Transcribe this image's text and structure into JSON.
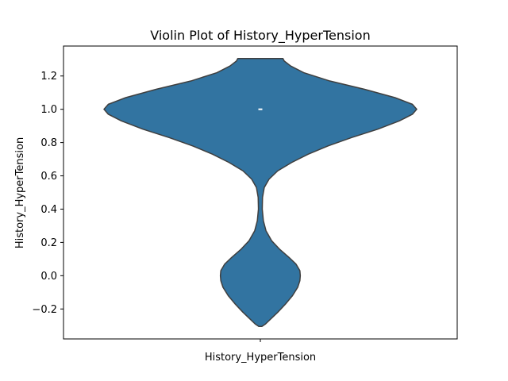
{
  "chart_data": {
    "type": "violin",
    "title": "Violin Plot of History_HyperTension",
    "xlabel": "History_HyperTension",
    "ylabel": "History_HyperTension",
    "categories": [
      "History_HyperTension"
    ],
    "ylim": [
      -0.38,
      1.38
    ],
    "yticks": [
      -0.2,
      0.0,
      0.2,
      0.4,
      0.6,
      0.8,
      1.0,
      1.2
    ],
    "yticklabels": [
      "−0.2",
      "0.0",
      "0.2",
      "0.4",
      "0.6",
      "0.8",
      "1.0",
      "1.2"
    ],
    "grid": false,
    "violin_extent": [
      -0.305,
      1.305
    ],
    "median": 1.0,
    "density_profile": [
      {
        "y": -0.305,
        "w": 0.018
      },
      {
        "y": -0.29,
        "w": 0.06
      },
      {
        "y": -0.26,
        "w": 0.12
      },
      {
        "y": -0.22,
        "w": 0.2
      },
      {
        "y": -0.17,
        "w": 0.29
      },
      {
        "y": -0.12,
        "w": 0.37
      },
      {
        "y": -0.07,
        "w": 0.43
      },
      {
        "y": -0.03,
        "w": 0.455
      },
      {
        "y": 0.0,
        "w": 0.46
      },
      {
        "y": 0.03,
        "w": 0.455
      },
      {
        "y": 0.07,
        "w": 0.41
      },
      {
        "y": 0.11,
        "w": 0.33
      },
      {
        "y": 0.16,
        "w": 0.22
      },
      {
        "y": 0.21,
        "w": 0.13
      },
      {
        "y": 0.27,
        "w": 0.065
      },
      {
        "y": 0.33,
        "w": 0.035
      },
      {
        "y": 0.4,
        "w": 0.022
      },
      {
        "y": 0.47,
        "w": 0.025
      },
      {
        "y": 0.53,
        "w": 0.045
      },
      {
        "y": 0.58,
        "w": 0.1
      },
      {
        "y": 0.63,
        "w": 0.2
      },
      {
        "y": 0.68,
        "w": 0.36
      },
      {
        "y": 0.73,
        "w": 0.55
      },
      {
        "y": 0.78,
        "w": 0.78
      },
      {
        "y": 0.83,
        "w": 1.05
      },
      {
        "y": 0.88,
        "w": 1.35
      },
      {
        "y": 0.93,
        "w": 1.6
      },
      {
        "y": 0.97,
        "w": 1.75
      },
      {
        "y": 1.0,
        "w": 1.8
      },
      {
        "y": 1.03,
        "w": 1.75
      },
      {
        "y": 1.07,
        "w": 1.55
      },
      {
        "y": 1.12,
        "w": 1.2
      },
      {
        "y": 1.17,
        "w": 0.8
      },
      {
        "y": 1.22,
        "w": 0.5
      },
      {
        "y": 1.26,
        "w": 0.35
      },
      {
        "y": 1.29,
        "w": 0.275
      },
      {
        "y": 1.305,
        "w": 0.26
      }
    ],
    "fill_color": "#3274a1",
    "edge_color": "#3f3f3f",
    "median_color": "#ffffff"
  }
}
